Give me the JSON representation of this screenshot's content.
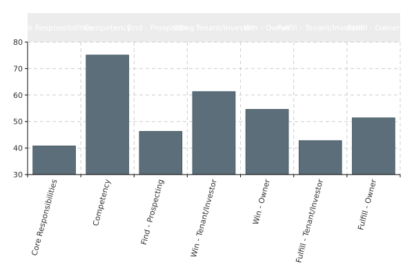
{
  "chart_data": {
    "type": "bar",
    "categories": [
      "Core Responsibilities",
      "Competency",
      "Find - Prospecting",
      "Win - Tenant/Investor",
      "Win - Owner",
      "Fulfill - Tenant/Investor",
      "Fulfill - Owner"
    ],
    "header_labels": [
      "Core Responsibilities",
      "Competency",
      "Find - Prospecting",
      "Win - Tenant/Investor",
      "Win - Owner",
      "Fulfill - Tenant/Investor",
      "Fulfill - Owner"
    ],
    "values": [
      40.8,
      75.1,
      46.3,
      61.3,
      54.6,
      42.8,
      51.4
    ],
    "y_ticks": [
      "30",
      "40",
      "50",
      "60",
      "70",
      "80"
    ],
    "ylim": [
      30,
      80
    ],
    "grid": true,
    "title": "",
    "xlabel": "",
    "ylabel": "",
    "colors": {
      "bar": "#5b6e7a",
      "bar_stroke": "#4a5c67",
      "grid": "#cccccc",
      "axis": "#000000",
      "header_band": "#ececec",
      "header_text": "#ffffff"
    }
  }
}
